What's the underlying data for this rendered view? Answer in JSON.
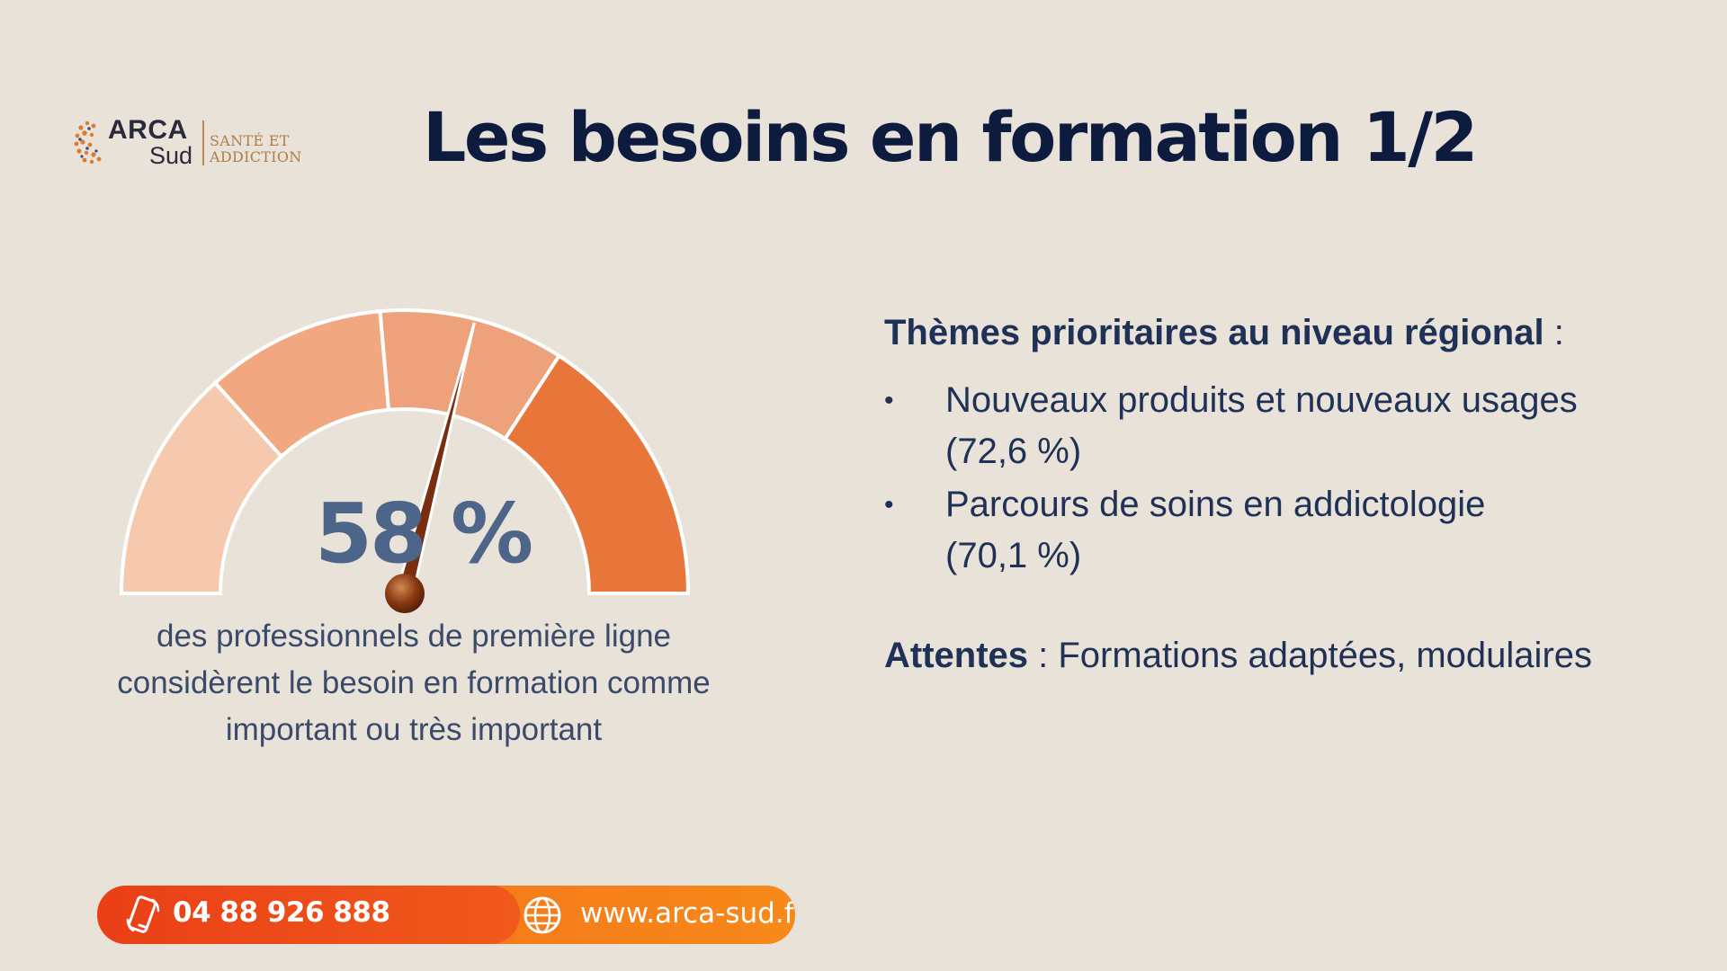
{
  "logo": {
    "name": "ARCA",
    "sub": "Sud",
    "tagline_line1": "SANTÉ ET",
    "tagline_line2": "ADDICTION"
  },
  "title": "Les besoins en formation  1/2",
  "gauge": {
    "value_label": "58 %",
    "value_fraction": 0.58,
    "segment_colors": [
      "#f6c8ad",
      "#f1a881",
      "#eda27c",
      "#e8763a"
    ],
    "needle_color": "#7a2e10",
    "caption_line1": "des professionnels de première ligne",
    "caption_line2": "considèrent le besoin en formation comme",
    "caption_line3": "important ou très important"
  },
  "themes": {
    "heading": "Thèmes prioritaires au niveau régional",
    "heading_suffix": " :",
    "items": [
      {
        "bullet": "•",
        "line1": "Nouveaux produits et nouveaux usages",
        "line2": "(72,6 %)"
      },
      {
        "bullet": "•",
        "line1": "Parcours de soins en addictologie",
        "line2": "(70,1 %)"
      }
    ],
    "expect_label": "Attentes",
    "expect_text": " : Formations adaptées, modulaires"
  },
  "contact": {
    "phone": "04 88 926 888",
    "website": "www.arca-sud.fr",
    "phone_icon": "phone-icon",
    "web_icon": "globe-icon"
  }
}
